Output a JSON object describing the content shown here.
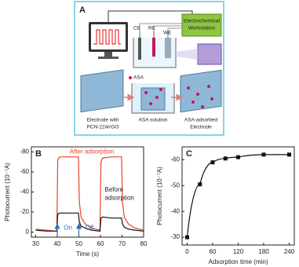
{
  "diagram": {
    "label": "A",
    "electrodes": [
      "CE",
      "RE",
      "WE"
    ],
    "workstation": [
      "Electrochemical",
      "Workstation"
    ],
    "asa": "ASA",
    "steps": [
      [
        "Electrode with",
        "PCN-224/rGO"
      ],
      [
        "ASA solution"
      ],
      [
        "ASA-adsorbed",
        "Electrode"
      ]
    ]
  },
  "chart_data": [
    {
      "type": "line",
      "label": "B",
      "xlabel": "Time (s)",
      "ylabel": "Photocurrent (10⁻⁷A)",
      "xlim": [
        28,
        80
      ],
      "xticks": [
        30,
        40,
        50,
        60,
        70,
        80
      ],
      "ylim": [
        5,
        -85
      ],
      "yticks": [
        0,
        -20,
        -40,
        -60,
        -80
      ],
      "annotations": [
        "After adsorption",
        "Before",
        "adsorption",
        "On",
        "Off"
      ],
      "x": [
        30,
        35,
        39.8,
        40.2,
        41,
        45,
        49.8,
        50.2,
        51,
        53,
        56,
        59.8,
        60.2,
        61,
        65,
        69.8,
        70.2,
        71,
        73,
        76,
        80
      ],
      "series": [
        {
          "color": "#e8402a",
          "values": [
            -3,
            -2,
            -1,
            -72,
            -75,
            -75,
            -75,
            -30,
            -15,
            -8,
            -4,
            -2,
            -70,
            -74,
            -75,
            -75,
            -30,
            -15,
            -8,
            -4,
            -2
          ]
        },
        {
          "color": "#111111",
          "values": [
            -2,
            -1,
            -1,
            -18,
            -19,
            -19,
            -19,
            -10,
            -6,
            -4,
            -2,
            -1,
            -14,
            -15,
            -14,
            -14,
            -8,
            -5,
            -3,
            -2,
            -1
          ]
        }
      ]
    },
    {
      "type": "scatter",
      "label": "C",
      "xlabel": "Adsorption time (min)",
      "ylabel": "Photocurrent (10⁻⁷A)",
      "xlim": [
        -12,
        252
      ],
      "xticks": [
        0,
        60,
        120,
        180,
        240
      ],
      "ylim": [
        -27,
        -65
      ],
      "yticks": [
        -30,
        -40,
        -50,
        -60
      ],
      "color": "#111111",
      "x": [
        0,
        30,
        60,
        90,
        120,
        180,
        240
      ],
      "values": [
        -30,
        -50.5,
        -59,
        -60.5,
        -61,
        -62,
        -62
      ]
    }
  ]
}
